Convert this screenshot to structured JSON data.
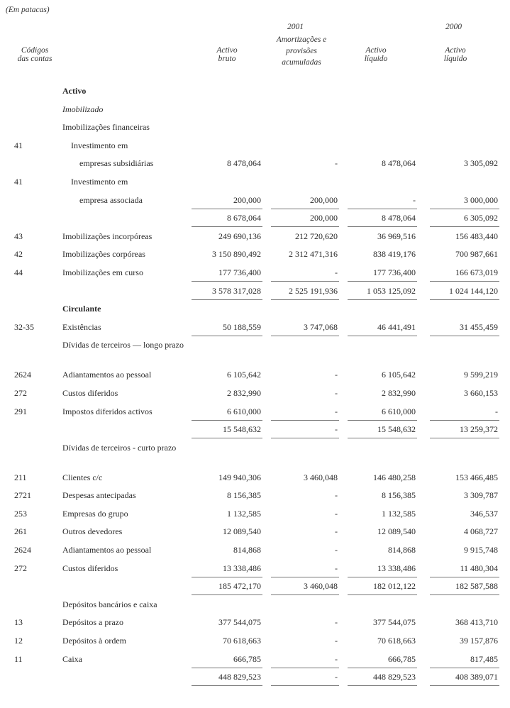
{
  "unit_note": "(Em patacas)",
  "header": {
    "year_current": "2001",
    "year_previous": "2000",
    "codes": [
      "Códigos",
      "das contas"
    ],
    "gross": [
      "Activo",
      "bruto"
    ],
    "amort": [
      "Amortizações e",
      "provisões",
      "acumuladas"
    ],
    "net": [
      "Activo",
      "líquido"
    ],
    "net_prev": [
      "Activo",
      "líquido"
    ]
  },
  "rows": [
    {
      "code": "",
      "label": "Activo",
      "style": "bold"
    },
    {
      "code": "",
      "label": "Imobilizado",
      "style": "italic"
    },
    {
      "code": "",
      "label": "Imobilizações financeiras"
    },
    {
      "code": "41",
      "label": "Investimento em",
      "indent": 1
    },
    {
      "code": "",
      "label": "empresas subsidiárias",
      "indent": 2,
      "values": [
        "8 478,064",
        "-",
        "8 478,064",
        "3 305,092"
      ]
    },
    {
      "code": "41",
      "label": "Investimento em",
      "indent": 1
    },
    {
      "code": "",
      "label": "empresa associada",
      "indent": 2,
      "values": [
        "200,000",
        "200,000",
        "-",
        "3 000,000"
      ],
      "rule": true
    },
    {
      "code": "",
      "label": "",
      "values": [
        "8 678,064",
        "200,000",
        "8 478,064",
        "6 305,092"
      ],
      "rule": true
    },
    {
      "code": "43",
      "label": "Imobilizações incorpóreas",
      "values": [
        "249 690,136",
        "212 720,620",
        "36 969,516",
        "156 483,440"
      ]
    },
    {
      "code": "42",
      "label": "Imobilizações corpóreas",
      "values": [
        "3 150 890,492",
        "2 312 471,316",
        "838 419,176",
        "700 987,661"
      ]
    },
    {
      "code": "44",
      "label": "Imobilizações em curso",
      "values": [
        "177 736,400",
        "-",
        "177 736,400",
        "166 673,019"
      ],
      "rule": true
    },
    {
      "code": "",
      "label": "",
      "values": [
        "3 578 317,028",
        "2 525 191,936",
        "1 053 125,092",
        "1 024 144,120"
      ],
      "rule": true
    },
    {
      "code": "",
      "label": "Circulante",
      "style": "bold"
    },
    {
      "code": "32-35",
      "label": "Existências",
      "values": [
        "50 188,559",
        "3 747,068",
        "46 441,491",
        "31 455,459"
      ],
      "rule": true
    },
    {
      "code": "",
      "label": "Dívidas de terceiros — longo prazo",
      "two": true
    },
    {
      "code": "2624",
      "label": "Adiantamentos ao pessoal",
      "values": [
        "6 105,642",
        "-",
        "6 105,642",
        "9 599,219"
      ]
    },
    {
      "code": "272",
      "label": "Custos diferidos",
      "values": [
        "2 832,990",
        "-",
        "2 832,990",
        "3 660,153"
      ]
    },
    {
      "code": "291",
      "label": "Impostos diferidos activos",
      "values": [
        "6 610,000",
        "-",
        "6 610,000",
        "-"
      ],
      "rule": true
    },
    {
      "code": "",
      "label": "",
      "values": [
        "15 548,632",
        "-",
        "15 548,632",
        "13 259,372"
      ],
      "rule": true
    },
    {
      "code": "",
      "label": "Dívidas de terceiros - curto prazo",
      "two": true
    },
    {
      "code": "211",
      "label": "Clientes c/c",
      "values": [
        "149 940,306",
        "3 460,048",
        "146 480,258",
        "153 466,485"
      ]
    },
    {
      "code": "2721",
      "label": "Despesas antecipadas",
      "values": [
        "8 156,385",
        "-",
        "8 156,385",
        "3 309,787"
      ]
    },
    {
      "code": "253",
      "label": "Empresas do grupo",
      "values": [
        "1 132,585",
        "-",
        "1 132,585",
        "346,537"
      ]
    },
    {
      "code": "261",
      "label": "Outros devedores",
      "values": [
        "12 089,540",
        "-",
        "12 089,540",
        "4 068,727"
      ]
    },
    {
      "code": "2624",
      "label": "Adiantamentos ao pessoal",
      "values": [
        "814,868",
        "-",
        "814,868",
        "9 915,748"
      ]
    },
    {
      "code": "272",
      "label": "Custos diferidos",
      "values": [
        "13 338,486",
        "-",
        "13 338,486",
        "11 480,304"
      ],
      "rule": true
    },
    {
      "code": "",
      "label": "",
      "values": [
        "185 472,170",
        "3 460,048",
        "182 012,122",
        "182 587,588"
      ],
      "rule": true
    },
    {
      "code": "",
      "label": "Depósitos bancários e caixa"
    },
    {
      "code": "13",
      "label": "Depósitos a prazo",
      "values": [
        "377 544,075",
        "-",
        "377 544,075",
        "368 413,710"
      ]
    },
    {
      "code": "12",
      "label": "Depósitos à ordem",
      "values": [
        "70 618,663",
        "-",
        "70 618,663",
        "39 157,876"
      ]
    },
    {
      "code": "11",
      "label": "Caixa",
      "values": [
        "666,785",
        "-",
        "666,785",
        "817,485"
      ],
      "rule": true
    },
    {
      "code": "",
      "label": "",
      "values": [
        "448 829,523",
        "-",
        "448 829,523",
        "408 389,071"
      ],
      "rule": true
    }
  ]
}
